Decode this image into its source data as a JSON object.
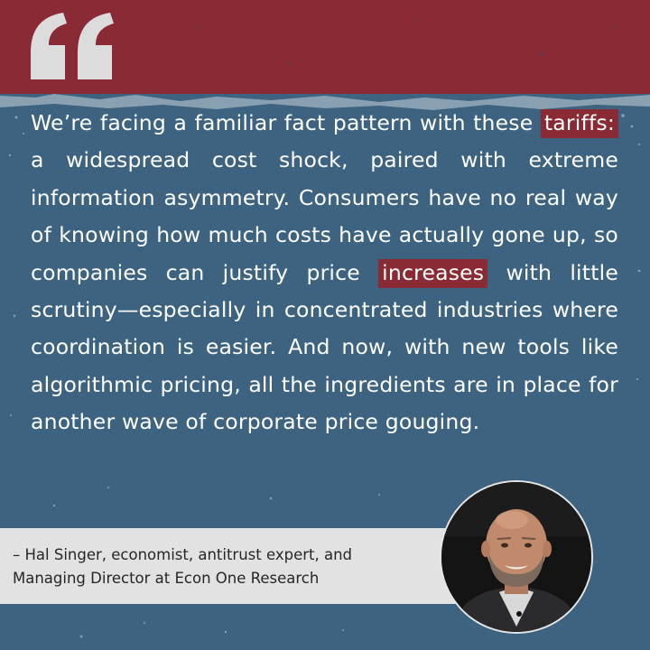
{
  "quote": {
    "mark": "“",
    "before_1": "We’re facing a familiar fact pattern with these ",
    "highlight_1": "tariffs:",
    "after_1": " a widespread cost shock, paired with extreme information asymmetry. Consumers have no real way of knowing how much costs have actually gone up, so companies can justify price ",
    "highlight_2": "increases",
    "after_2": " with little scrutiny—especially in concentrated industries where coordination is easier. And now, with new tools like algorithmic pricing, all the ingredients are in place for another wave of corporate price gouging."
  },
  "attribution": {
    "line1": "– Hal Singer, economist, antitrust expert, and",
    "line2": "Managing Director at Econ One Research"
  },
  "colors": {
    "top_band": "#8a2a35",
    "background": "#3d6380",
    "highlight": "#8a2a35",
    "attribution_bg": "#e2e2e2",
    "text": "#ffffff"
  },
  "icons": {
    "quote_mark": "quote-mark-icon",
    "portrait": "portrait-photo"
  }
}
